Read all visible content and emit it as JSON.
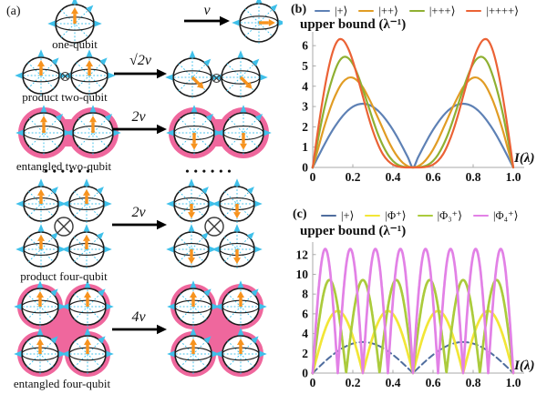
{
  "panel_a": {
    "label": "(a)",
    "captions": {
      "one_qubit": "one-qubit",
      "product_two_qubit": "product two-qubit",
      "entangled_two_qubit": "entangled two-qubit",
      "product_four_qubit": "product four-qubit",
      "entangled_four_qubit": "entangled four-qubit"
    },
    "arrow_labels": {
      "one_qubit": "v",
      "product_two_qubit": "√2v",
      "entangled_two_qubit": "2v",
      "product_four_qubit": "2v",
      "entangled_four_qubit": "4v"
    },
    "dots_left": "••••••",
    "dots_right": "••••••",
    "spins": {
      "one_qubit": {
        "left": [
          "up"
        ],
        "right": [
          "right"
        ]
      },
      "product_two_qubit": {
        "left": [
          "up",
          "up"
        ],
        "right": [
          "down-right",
          "down-right"
        ]
      },
      "entangled_two_qubit": {
        "left": [
          "up",
          "up"
        ],
        "right": [
          "down",
          "down"
        ]
      },
      "product_four_qubit": {
        "left": [
          "up",
          "up",
          "up",
          "up"
        ],
        "right": [
          "down",
          "down",
          "down",
          "down"
        ]
      },
      "entangled_four_qubit": {
        "left": [
          "up",
          "up",
          "up",
          "up"
        ],
        "right": [
          "up",
          "up",
          "up",
          "up"
        ]
      }
    },
    "colors": {
      "spin_arrow": "#F7931E",
      "bloch_axes": "#3FC0EA",
      "entanglement": "#EF679D",
      "sphere_outline": "#1a1a1a",
      "transition_arrow": "#000000"
    }
  },
  "chart_data": [
    {
      "panel_label": "(b)",
      "type": "line",
      "title": "upper bound (λ⁻¹)",
      "xlabel": "I(λ)",
      "xlim": [
        0,
        1
      ],
      "ylim": [
        0,
        6.5
      ],
      "xticks": [
        "0",
        "0.2",
        "0.4",
        "0.6",
        "0.8",
        "1.0"
      ],
      "yticks": [
        "0",
        "1",
        "2",
        "3",
        "4",
        "5",
        "6"
      ],
      "legend_position": "top",
      "grid": false,
      "x": [
        0,
        0.025,
        0.05,
        0.075,
        0.1,
        0.125,
        0.15,
        0.175,
        0.2,
        0.225,
        0.25,
        0.275,
        0.3,
        0.325,
        0.35,
        0.375,
        0.4,
        0.425,
        0.45,
        0.475,
        0.5,
        0.525,
        0.55,
        0.575,
        0.6,
        0.625,
        0.65,
        0.675,
        0.7,
        0.725,
        0.75,
        0.775,
        0.8,
        0.825,
        0.85,
        0.875,
        0.9,
        0.925,
        0.95,
        0.975,
        1.0
      ],
      "series": [
        {
          "name": "|+⟩",
          "color": "#5E81B5",
          "style": "solid",
          "peak_value": 3.14,
          "y": [
            0,
            0.49,
            0.97,
            1.43,
            1.85,
            2.22,
            2.54,
            2.8,
            2.99,
            3.1,
            3.14,
            3.1,
            2.99,
            2.8,
            2.54,
            2.22,
            1.85,
            1.43,
            0.97,
            0.49,
            0,
            0.49,
            0.97,
            1.43,
            1.85,
            2.22,
            2.54,
            2.8,
            2.99,
            3.1,
            3.14,
            3.1,
            2.99,
            2.8,
            2.54,
            2.22,
            1.85,
            1.43,
            0.97,
            0.49,
            0
          ]
        },
        {
          "name": "|++⟩",
          "color": "#E19C24",
          "style": "solid",
          "peak_value": 4.44,
          "y": [
            0,
            0.85,
            1.75,
            2.55,
            3.25,
            3.8,
            4.2,
            4.4,
            4.42,
            4.25,
            3.95,
            3.5,
            3.0,
            2.45,
            1.9,
            1.35,
            0.88,
            0.5,
            0.22,
            0.06,
            0,
            0.06,
            0.22,
            0.5,
            0.88,
            1.35,
            1.9,
            2.45,
            3.0,
            3.5,
            3.95,
            4.25,
            4.42,
            4.4,
            4.2,
            3.8,
            3.25,
            2.55,
            1.75,
            0.85,
            0
          ]
        },
        {
          "name": "|+++⟩",
          "color": "#8FB032",
          "style": "solid",
          "peak_value": 5.44,
          "y": [
            0,
            1.3,
            2.55,
            3.6,
            4.45,
            5.1,
            5.42,
            5.4,
            5.1,
            4.55,
            3.85,
            3.1,
            2.35,
            1.65,
            1.08,
            0.63,
            0.32,
            0.13,
            0.04,
            0.01,
            0,
            0.01,
            0.04,
            0.13,
            0.32,
            0.63,
            1.08,
            1.65,
            2.35,
            3.1,
            3.85,
            4.55,
            5.1,
            5.4,
            5.42,
            5.1,
            4.45,
            3.6,
            2.55,
            1.3,
            0
          ]
        },
        {
          "name": "|++++⟩",
          "color": "#EB6235",
          "style": "solid",
          "peak_value": 6.28,
          "y": [
            0,
            1.75,
            3.35,
            4.7,
            5.7,
            6.25,
            6.28,
            5.9,
            5.25,
            4.4,
            3.5,
            2.6,
            1.8,
            1.15,
            0.65,
            0.33,
            0.14,
            0.05,
            0.01,
            0,
            0,
            0,
            0.01,
            0.05,
            0.14,
            0.33,
            0.65,
            1.15,
            1.8,
            2.6,
            3.5,
            4.4,
            5.25,
            5.9,
            6.28,
            6.25,
            5.7,
            4.7,
            3.35,
            1.75,
            0
          ]
        }
      ]
    },
    {
      "panel_label": "(c)",
      "type": "line",
      "title": "upper bound (λ⁻¹)",
      "xlabel": "I(λ)",
      "xlim": [
        0,
        1
      ],
      "ylim": [
        0,
        12.9
      ],
      "xticks": [
        "0",
        "0.2",
        "0.4",
        "0.6",
        "0.8",
        "1.0"
      ],
      "yticks": [
        "0",
        "2",
        "4",
        "6",
        "8",
        "10",
        "12"
      ],
      "legend_position": "top",
      "grid": false,
      "series": [
        {
          "name": "|+⟩",
          "color": "#4F6D9E",
          "style": "dashed",
          "peak_value": 3.14,
          "model": {
            "type": "abs_sin",
            "amplitude": 3.1416,
            "humps": 2,
            "zeros_x": [
              0,
              0.5,
              1
            ]
          }
        },
        {
          "name": "|Φ⁺⟩",
          "color": "#F2E636",
          "style": "solid",
          "peak_value": 6.28,
          "model": {
            "type": "abs_sin",
            "amplitude": 6.2832,
            "humps": 4,
            "zeros_x": [
              0,
              0.25,
              0.5,
              0.75,
              1
            ]
          }
        },
        {
          "name": "|Φ₃⁺⟩",
          "color": "#ABCB3C",
          "style": "solid",
          "peak_value": 9.42,
          "model": {
            "type": "abs_sin",
            "amplitude": 9.4248,
            "humps": 6,
            "zeros_x": [
              0,
              0.167,
              0.333,
              0.5,
              0.667,
              0.833,
              1
            ]
          }
        },
        {
          "name": "|Φ₄⁺⟩",
          "color": "#E281E6",
          "style": "solid",
          "peak_value": 12.57,
          "model": {
            "type": "abs_sin",
            "amplitude": 12.5664,
            "humps": 8,
            "zeros_x": [
              0,
              0.125,
              0.25,
              0.375,
              0.5,
              0.625,
              0.75,
              0.875,
              1
            ]
          }
        }
      ]
    }
  ]
}
